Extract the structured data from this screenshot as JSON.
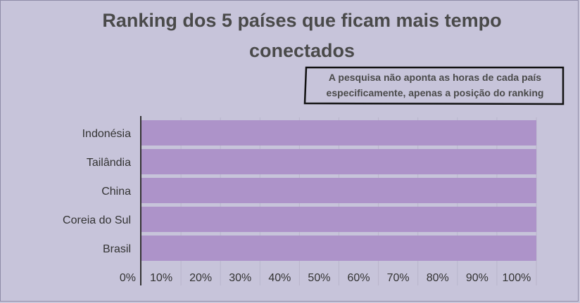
{
  "chart_data": {
    "type": "bar",
    "orientation": "horizontal",
    "title_lines": [
      "Ranking dos 5 países que ficam mais tempo",
      "conectados"
    ],
    "annotation_lines": [
      "A pesquisa não aponta as horas de cada país",
      "especificamente, apenas a posição do ranking"
    ],
    "categories": [
      "Indonésia",
      "Tailândia",
      "China",
      "Coreia do Sul",
      "Brasil"
    ],
    "values": [
      100,
      100,
      100,
      100,
      100
    ],
    "xlim": [
      0,
      100
    ],
    "x_ticks": [
      "0%",
      "10%",
      "20%",
      "30%",
      "40%",
      "50%",
      "60%",
      "70%",
      "80%",
      "90%",
      "100%"
    ],
    "grid": true,
    "bar_color": "#ad93c9"
  }
}
